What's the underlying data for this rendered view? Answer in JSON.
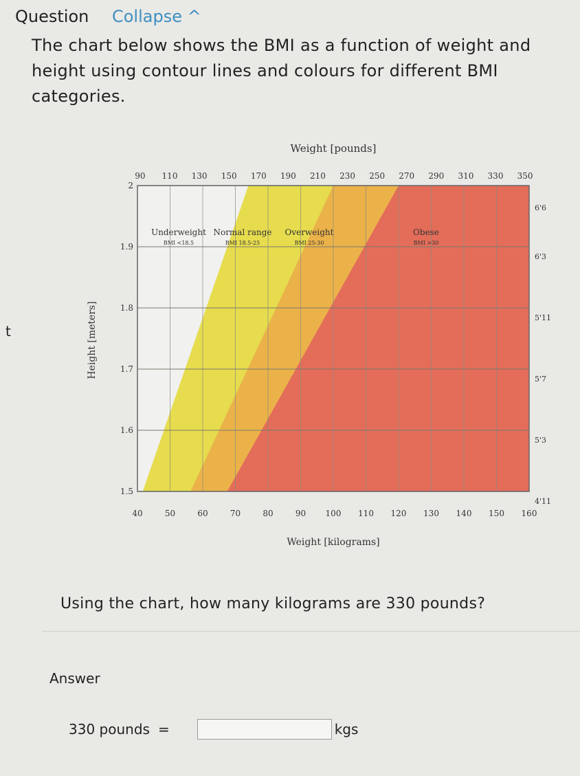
{
  "header": {
    "title": "Question",
    "collapse_label": "Collapse ^"
  },
  "question": {
    "prompt": "The chart below shows the BMI as a function of weight and height using contour lines and colours for different BMI categories.",
    "text": "Using the chart, how many kilograms are 330 pounds?",
    "side_mark": "t"
  },
  "answer": {
    "label": "Answer",
    "lhs": "330 pounds",
    "equals": "=",
    "value": "",
    "unit": "kgs"
  },
  "chart_data": {
    "type": "area",
    "title": "Weight [pounds]",
    "xlabel": "Weight [kilograms]",
    "ylabel": "Height [meters]",
    "x_kg_ticks": [
      40,
      50,
      60,
      70,
      80,
      90,
      100,
      110,
      120,
      130,
      140,
      150,
      160
    ],
    "x_lb_ticks": [
      90,
      110,
      130,
      150,
      170,
      190,
      210,
      230,
      250,
      270,
      290,
      310,
      330,
      350
    ],
    "y_m_ticks": [
      "1.5",
      "1.6",
      "1.7",
      "1.8",
      "1.9",
      "2"
    ],
    "y_ft_ticks": [
      "4'11",
      "5'3",
      "5'7",
      "5'11",
      "6'3",
      "6'6"
    ],
    "xlim_kg": [
      40,
      160
    ],
    "ylim_m": [
      1.5,
      2.0
    ],
    "grid": true,
    "regions": [
      {
        "name": "Underweight",
        "sublabel": "BMI <18.5",
        "bmi_max": 18.5,
        "color": "#f1f1ef"
      },
      {
        "name": "Normal range",
        "sublabel": "BMI 18.5-25",
        "bmi_max": 25,
        "color": "#e6dc4e"
      },
      {
        "name": "Overweight",
        "sublabel": "BMI 25-30",
        "bmi_max": 30,
        "color": "#ebb24a"
      },
      {
        "name": "Obese",
        "sublabel": "BMI >30",
        "bmi_max": null,
        "color": "#e36d59"
      }
    ]
  }
}
